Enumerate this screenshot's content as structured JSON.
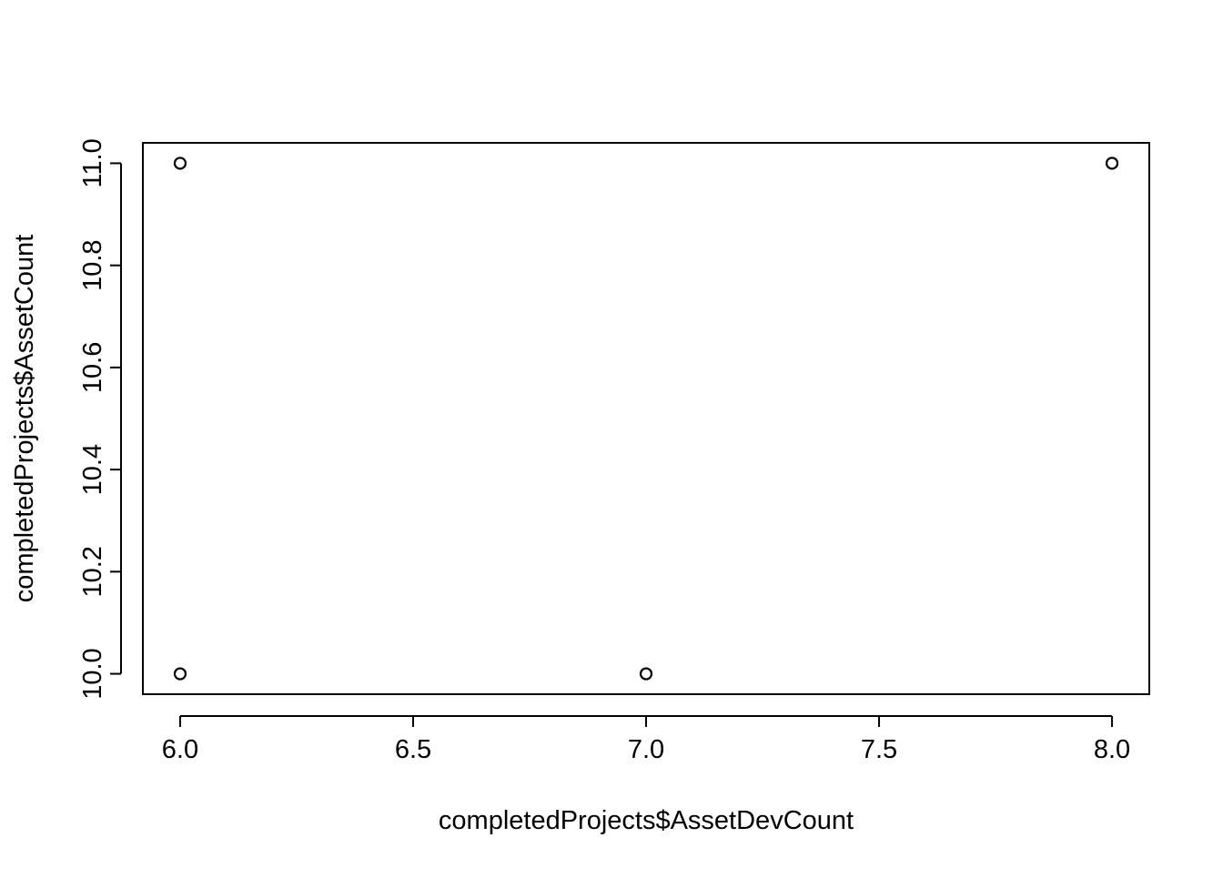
{
  "chart_data": {
    "type": "scatter",
    "title": "",
    "xlabel": "completedProjects$AssetDevCount",
    "ylabel": "completedProjects$AssetCount",
    "xlim": [
      5.92,
      8.08
    ],
    "ylim": [
      9.96,
      11.04
    ],
    "xticks": [
      6.0,
      6.5,
      7.0,
      7.5,
      8.0
    ],
    "xtick_labels": [
      "6.0",
      "6.5",
      "7.0",
      "7.5",
      "8.0"
    ],
    "yticks": [
      10.0,
      10.2,
      10.4,
      10.6,
      10.8,
      11.0
    ],
    "ytick_labels": [
      "10.0",
      "10.2",
      "10.4",
      "10.6",
      "10.8",
      "11.0"
    ],
    "grid": false,
    "marker": "open-circle",
    "points": [
      {
        "x": 6,
        "y": 11
      },
      {
        "x": 6,
        "y": 10
      },
      {
        "x": 7,
        "y": 10
      },
      {
        "x": 8,
        "y": 11
      }
    ],
    "colors": {
      "points": "#000000",
      "axes": "#000000",
      "background": "#ffffff"
    }
  }
}
